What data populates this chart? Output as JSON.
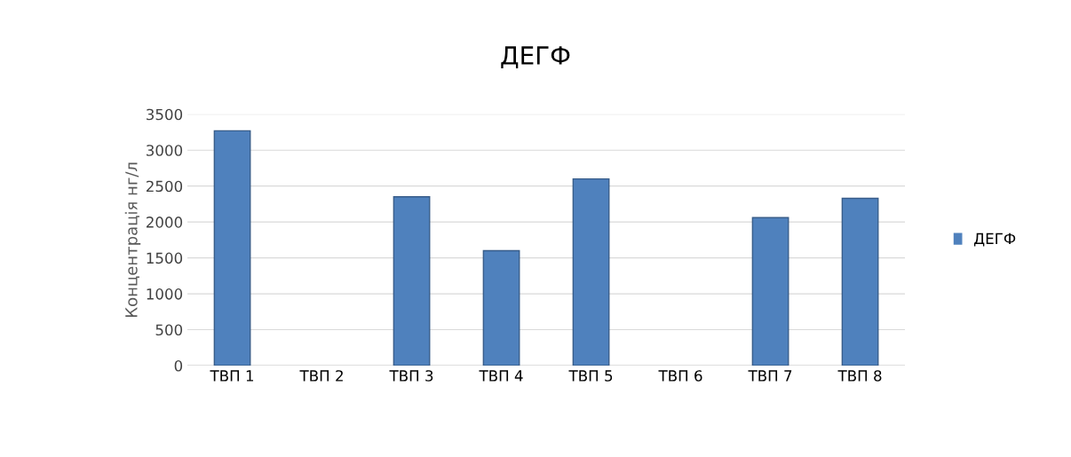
{
  "chart_data": {
    "type": "bar",
    "title": "ДЕГФ",
    "ylabel": "Концентрація нг/л",
    "categories": [
      "ТВП 1",
      "ТВП 2",
      "ТВП 3",
      "ТВП 4",
      "ТВП 5",
      "ТВП 6",
      "ТВП 7",
      "ТВП 8"
    ],
    "series": [
      {
        "name": "ДЕГФ",
        "color": "#4f81bd",
        "values": [
          3270,
          null,
          2350,
          1600,
          2600,
          null,
          2060,
          2330
        ]
      }
    ],
    "ylim": [
      0,
      3500
    ],
    "yticks": [
      0,
      500,
      1000,
      1500,
      2000,
      2500,
      3000,
      3500
    ],
    "grid": "y",
    "legend": "right"
  }
}
